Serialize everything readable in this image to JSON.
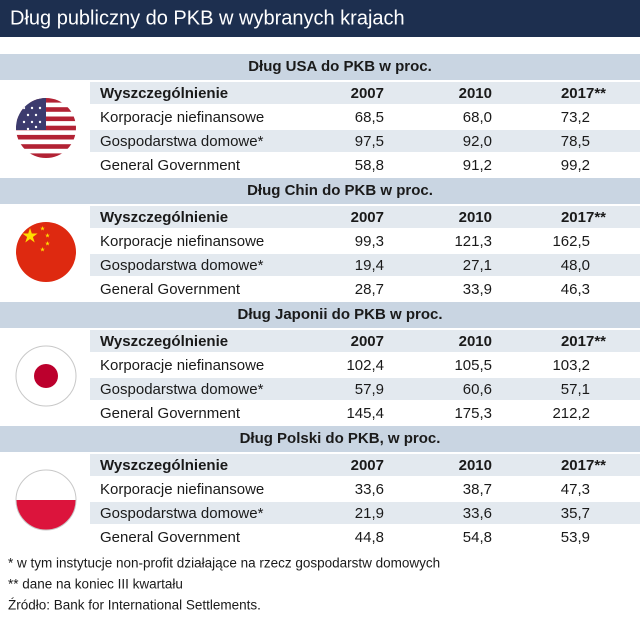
{
  "title": "Dług publiczny do PKB w wybranych krajach",
  "sections": [
    {
      "title": "Dług USA do PKB w proc.",
      "header": [
        "Wyszczególnienie",
        "2007",
        "2010",
        "2017**"
      ],
      "rows": [
        [
          "Korporacje niefinansowe",
          "68,5",
          "68,0",
          "73,2"
        ],
        [
          "Gospodarstwa domowe*",
          "97,5",
          "92,0",
          "78,5"
        ],
        [
          "General Government",
          "58,8",
          "91,2",
          "99,2"
        ]
      ]
    },
    {
      "title": "Dług Chin do PKB w proc.",
      "header": [
        "Wyszczególnienie",
        "2007",
        "2010",
        "2017**"
      ],
      "rows": [
        [
          "Korporacje niefinansowe",
          "99,3",
          "121,3",
          "162,5"
        ],
        [
          "Gospodarstwa domowe*",
          "19,4",
          "27,1",
          "48,0"
        ],
        [
          "General Government",
          "28,7",
          "33,9",
          "46,3"
        ]
      ]
    },
    {
      "title": "Dług Japonii do PKB w proc.",
      "header": [
        "Wyszczególnienie",
        "2007",
        "2010",
        "2017**"
      ],
      "rows": [
        [
          "Korporacje niefinansowe",
          "102,4",
          "105,5",
          "103,2"
        ],
        [
          "Gospodarstwa domowe*",
          "57,9",
          "60,6",
          "57,1"
        ],
        [
          "General Government",
          "145,4",
          "175,3",
          "212,2"
        ]
      ]
    },
    {
      "title": "Dług Polski do PKB, w proc.",
      "header": [
        "Wyszczególnienie",
        "2007",
        "2010",
        "2017**"
      ],
      "rows": [
        [
          "Korporacje niefinansowe",
          "33,6",
          "38,7",
          "47,3"
        ],
        [
          "Gospodarstwa domowe*",
          "21,9",
          "33,6",
          "35,7"
        ],
        [
          "General Government",
          "44,8",
          "54,8",
          "53,9"
        ]
      ]
    }
  ],
  "footnotes": [
    "* w tym instytucje non-profit działające na rzecz gospodarstw domowych",
    "** dane na koniec III kwartału",
    "Źródło: Bank for International Settlements."
  ]
}
